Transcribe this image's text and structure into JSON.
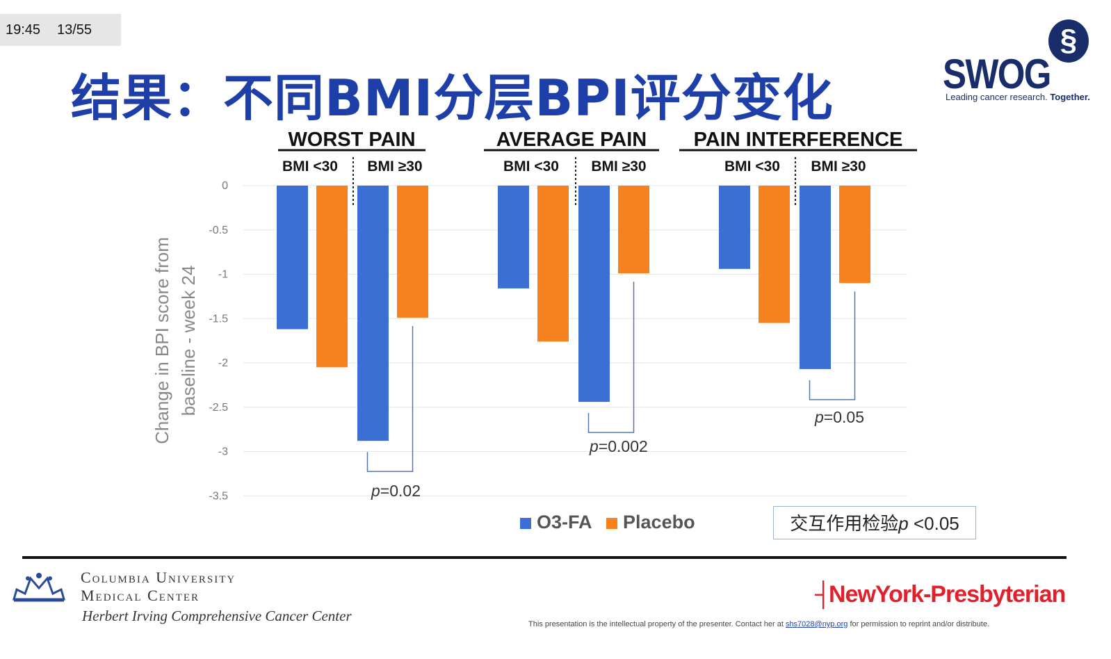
{
  "status": {
    "time": "19:45",
    "page": "13/55"
  },
  "slide_title": "结果：不同BMI分层BPI评分变化",
  "swog": {
    "name": "SWOG",
    "tagline": "Leading cancer research.",
    "tagline_bold": "Together.",
    "icon": "swog-emblem-icon"
  },
  "chart_data": {
    "type": "bar",
    "ylabel_line1": "Change in BPI score from",
    "ylabel_line2": "baseline - week 24",
    "ylim": [
      -3.5,
      0
    ],
    "yticks": [
      "0",
      "-0.5",
      "-1",
      "-1.5",
      "-2",
      "-2.5",
      "-3",
      "-3.5"
    ],
    "groups": [
      {
        "name": "WORST PAIN",
        "subgroups": [
          "BMI <30",
          "BMI ≥30"
        ],
        "p_label": "p",
        "p_value": "=0.02"
      },
      {
        "name": "AVERAGE PAIN",
        "subgroups": [
          "BMI <30",
          "BMI ≥30"
        ],
        "p_label": "p",
        "p_value": "=0.002"
      },
      {
        "name": "PAIN INTERFERENCE",
        "subgroups": [
          "BMI <30",
          "BMI ≥30"
        ],
        "p_label": "p",
        "p_value": "=0.05"
      }
    ],
    "series": [
      {
        "name": "O3-FA",
        "color": "#3b6fd4",
        "values": [
          -1.62,
          -2.88,
          -1.16,
          -2.44,
          -0.94,
          -2.07
        ]
      },
      {
        "name": "Placebo",
        "color": "#f5821f",
        "values": [
          -2.05,
          -1.49,
          -1.76,
          -0.99,
          -1.55,
          -1.1
        ]
      }
    ],
    "legend": [
      "O3-FA",
      "Placebo"
    ]
  },
  "interaction_note": {
    "text": "交互作用检验",
    "p": "p",
    "value": " <0.05"
  },
  "footer": {
    "columbia_line1": "Columbia University",
    "columbia_line2": "Medical Center",
    "columbia_line3": "Herbert Irving Comprehensive Cancer Center",
    "nyp": "NewYork-Presbyterian",
    "disclaimer_pre": "This presentation  is the intellectual  property of the presenter.  Contact  her at",
    "disclaimer_email": "shs7028@nyp.org",
    "disclaimer_post": "for permission  to reprint and/or distribute."
  }
}
